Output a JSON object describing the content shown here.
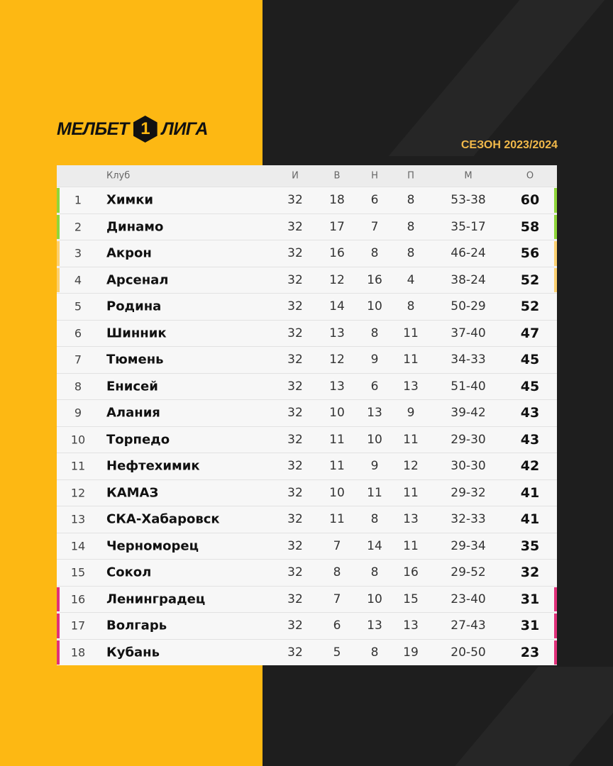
{
  "logo": {
    "left": "МЕЛБЕТ",
    "number": "1",
    "right": "ЛИГА"
  },
  "season": "СЕЗОН 2023/2024",
  "colors": {
    "yellow": "#fdb813",
    "dark": "#1e1e1e",
    "promotion": "#8fd63a",
    "playoff": "#fcd070",
    "relegation": "#e0307a"
  },
  "table": {
    "headers": {
      "club": "Клуб",
      "played": "И",
      "won": "В",
      "drawn": "Н",
      "lost": "П",
      "goals": "М",
      "points": "О"
    },
    "rows": [
      {
        "pos": "1",
        "club": "Химки",
        "p": "32",
        "w": "18",
        "d": "6",
        "l": "8",
        "g": "53-38",
        "pts": "60",
        "zone": "promotion"
      },
      {
        "pos": "2",
        "club": "Динамо",
        "p": "32",
        "w": "17",
        "d": "7",
        "l": "8",
        "g": "35-17",
        "pts": "58",
        "zone": "promotion"
      },
      {
        "pos": "3",
        "club": "Акрон",
        "p": "32",
        "w": "16",
        "d": "8",
        "l": "8",
        "g": "46-24",
        "pts": "56",
        "zone": "playoff"
      },
      {
        "pos": "4",
        "club": "Арсенал",
        "p": "32",
        "w": "12",
        "d": "16",
        "l": "4",
        "g": "38-24",
        "pts": "52",
        "zone": "playoff"
      },
      {
        "pos": "5",
        "club": "Родина",
        "p": "32",
        "w": "14",
        "d": "10",
        "l": "8",
        "g": "50-29",
        "pts": "52",
        "zone": ""
      },
      {
        "pos": "6",
        "club": "Шинник",
        "p": "32",
        "w": "13",
        "d": "8",
        "l": "11",
        "g": "37-40",
        "pts": "47",
        "zone": ""
      },
      {
        "pos": "7",
        "club": "Тюмень",
        "p": "32",
        "w": "12",
        "d": "9",
        "l": "11",
        "g": "34-33",
        "pts": "45",
        "zone": ""
      },
      {
        "pos": "8",
        "club": "Енисей",
        "p": "32",
        "w": "13",
        "d": "6",
        "l": "13",
        "g": "51-40",
        "pts": "45",
        "zone": ""
      },
      {
        "pos": "9",
        "club": "Алания",
        "p": "32",
        "w": "10",
        "d": "13",
        "l": "9",
        "g": "39-42",
        "pts": "43",
        "zone": ""
      },
      {
        "pos": "10",
        "club": "Торпедо",
        "p": "32",
        "w": "11",
        "d": "10",
        "l": "11",
        "g": "29-30",
        "pts": "43",
        "zone": ""
      },
      {
        "pos": "11",
        "club": "Нефтехимик",
        "p": "32",
        "w": "11",
        "d": "9",
        "l": "12",
        "g": "30-30",
        "pts": "42",
        "zone": ""
      },
      {
        "pos": "12",
        "club": "КАМАЗ",
        "p": "32",
        "w": "10",
        "d": "11",
        "l": "11",
        "g": "29-32",
        "pts": "41",
        "zone": ""
      },
      {
        "pos": "13",
        "club": "СКА-Хабаровск",
        "p": "32",
        "w": "11",
        "d": "8",
        "l": "13",
        "g": "32-33",
        "pts": "41",
        "zone": ""
      },
      {
        "pos": "14",
        "club": "Черноморец",
        "p": "32",
        "w": "7",
        "d": "14",
        "l": "11",
        "g": "29-34",
        "pts": "35",
        "zone": ""
      },
      {
        "pos": "15",
        "club": "Сокол",
        "p": "32",
        "w": "8",
        "d": "8",
        "l": "16",
        "g": "29-52",
        "pts": "32",
        "zone": ""
      },
      {
        "pos": "16",
        "club": "Ленинградец",
        "p": "32",
        "w": "7",
        "d": "10",
        "l": "15",
        "g": "23-40",
        "pts": "31",
        "zone": "relegation"
      },
      {
        "pos": "17",
        "club": "Волгарь",
        "p": "32",
        "w": "6",
        "d": "13",
        "l": "13",
        "g": "27-43",
        "pts": "31",
        "zone": "relegation"
      },
      {
        "pos": "18",
        "club": "Кубань",
        "p": "32",
        "w": "5",
        "d": "8",
        "l": "19",
        "g": "20-50",
        "pts": "23",
        "zone": "relegation"
      }
    ]
  }
}
